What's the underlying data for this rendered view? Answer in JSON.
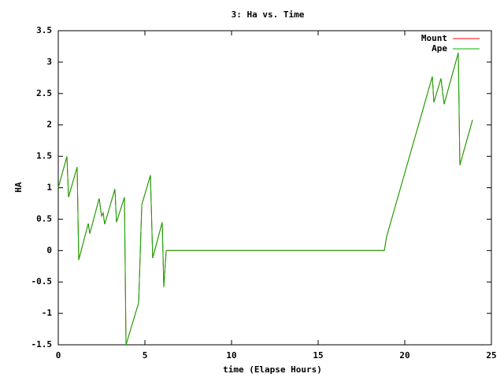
{
  "chart_data": {
    "type": "line",
    "title": "3: Ha vs. Time",
    "x_label": "time (Elapse Hours)",
    "y_label": "HA",
    "x": [
      0,
      0.5,
      0.59,
      1.09,
      1.18,
      1.73,
      1.82,
      2.36,
      2.5,
      2.59,
      2.68,
      3.27,
      3.36,
      3.82,
      3.91,
      4.64,
      4.82,
      5.32,
      5.45,
      6.0,
      6.09,
      6.23,
      6.27,
      18.82,
      18.95,
      21.59,
      21.68,
      22.09,
      22.27,
      23.09,
      23.18,
      23.91
    ],
    "series": [
      {
        "name": "Mount",
        "color": "#ff0000",
        "values": [
          1.0,
          1.5,
          0.85,
          1.33,
          -0.15,
          0.43,
          0.27,
          0.83,
          0.55,
          0.6,
          0.42,
          0.98,
          0.45,
          0.85,
          -1.5,
          -0.83,
          0.73,
          1.2,
          -0.12,
          0.45,
          -0.58,
          0,
          0,
          0,
          0.22,
          2.77,
          2.36,
          2.74,
          2.33,
          3.15,
          1.36,
          2.08
        ]
      },
      {
        "name": "Ape",
        "color": "#00b000",
        "values": [
          1.0,
          1.5,
          0.85,
          1.33,
          -0.15,
          0.43,
          0.27,
          0.83,
          0.55,
          0.6,
          0.42,
          0.98,
          0.45,
          0.85,
          -1.5,
          -0.83,
          0.73,
          1.2,
          -0.12,
          0.45,
          -0.58,
          0,
          0,
          0,
          0.22,
          2.77,
          2.36,
          2.74,
          2.33,
          3.15,
          1.36,
          2.08
        ]
      }
    ],
    "xlim": [
      0,
      25
    ],
    "xticks": [
      0,
      5,
      10,
      15,
      20,
      25
    ],
    "ylim": [
      -1.5,
      3.5
    ],
    "yticks": [
      -1.5,
      -1,
      -0.5,
      0,
      0.5,
      1,
      1.5,
      2,
      2.5,
      3,
      3.5
    ],
    "grid": false,
    "legend": "top-right"
  }
}
